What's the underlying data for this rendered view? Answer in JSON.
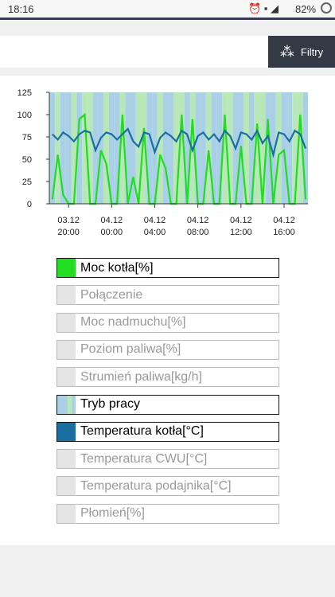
{
  "status_bar": {
    "time": "18:16",
    "battery": "82%"
  },
  "header": {
    "button": "Filtry"
  },
  "chart_data": {
    "type": "line",
    "x": [
      "03.12 18:30",
      "03.12 19:00",
      "03.12 19:30",
      "03.12 20:00",
      "03.12 20:30",
      "03.12 21:00",
      "03.12 21:30",
      "03.12 22:00",
      "03.12 22:30",
      "03.12 23:00",
      "03.12 23:30",
      "04.12 00:00",
      "04.12 00:30",
      "04.12 01:00",
      "04.12 01:30",
      "04.12 02:00",
      "04.12 02:30",
      "04.12 03:00",
      "04.12 03:30",
      "04.12 04:00",
      "04.12 04:30",
      "04.12 05:00",
      "04.12 05:30",
      "04.12 06:00",
      "04.12 06:30",
      "04.12 07:00",
      "04.12 07:30",
      "04.12 08:00",
      "04.12 08:30",
      "04.12 09:00",
      "04.12 09:30",
      "04.12 10:00",
      "04.12 10:30",
      "04.12 11:00",
      "04.12 11:30",
      "04.12 12:00",
      "04.12 12:30",
      "04.12 13:00",
      "04.12 13:30",
      "04.12 14:00",
      "04.12 14:30",
      "04.12 15:00",
      "04.12 15:30",
      "04.12 16:00",
      "04.12 16:30",
      "04.12 17:00",
      "04.12 17:30",
      "04.12 18:00"
    ],
    "xlim": [
      "03.12 18:13",
      "04.12 18:13"
    ],
    "xticks": [
      {
        "value": "03.12 20:00",
        "label": [
          "03.12",
          "20:00"
        ]
      },
      {
        "value": "04.12 00:00",
        "label": [
          "04.12",
          "00:00"
        ]
      },
      {
        "value": "04.12 04:00",
        "label": [
          "04.12",
          "04:00"
        ]
      },
      {
        "value": "04.12 08:00",
        "label": [
          "04.12",
          "08:00"
        ]
      },
      {
        "value": "04.12 12:00",
        "label": [
          "04.12",
          "12:00"
        ]
      },
      {
        "value": "04.12 16:00",
        "label": [
          "04.12",
          "16:00"
        ]
      }
    ],
    "ylim": [
      0,
      125
    ],
    "yticks": [
      0,
      25,
      50,
      75,
      100,
      125
    ],
    "series": [
      {
        "name": "Moc kotła[%]",
        "color": "#22dd22",
        "visible": true,
        "values": [
          5,
          55,
          10,
          0,
          0,
          95,
          100,
          0,
          0,
          60,
          45,
          0,
          0,
          100,
          0,
          30,
          0,
          85,
          0,
          0,
          55,
          40,
          0,
          0,
          100,
          0,
          95,
          0,
          0,
          60,
          0,
          0,
          100,
          0,
          0,
          65,
          0,
          0,
          90,
          0,
          95,
          0,
          55,
          60,
          0,
          0,
          100,
          5
        ]
      },
      {
        "name": "Połączenie",
        "visible": false
      },
      {
        "name": "Moc nadmuchu[%]",
        "visible": false
      },
      {
        "name": "Poziom paliwa[%]",
        "visible": false
      },
      {
        "name": "Strumień paliwa[kg/h]",
        "visible": false
      },
      {
        "name": "Tryb pracy",
        "colors": [
          "#a9d0e6",
          "#b8e8b8"
        ],
        "visible": true,
        "mode": "band",
        "values": [
          1,
          2,
          1,
          1,
          2,
          1,
          2,
          2,
          1,
          1,
          2,
          1,
          1,
          2,
          1,
          1,
          2,
          2,
          1,
          1,
          2,
          1,
          1,
          2,
          2,
          1,
          2,
          1,
          1,
          2,
          1,
          1,
          2,
          2,
          1,
          1,
          2,
          1,
          2,
          2,
          1,
          1,
          2,
          1,
          1,
          2,
          2,
          1
        ]
      },
      {
        "name": "Temperatura kotła[°C]",
        "color": "#1a6fa0",
        "visible": true,
        "values": [
          78,
          72,
          80,
          76,
          70,
          78,
          82,
          80,
          60,
          74,
          80,
          78,
          72,
          78,
          84,
          70,
          64,
          80,
          78,
          58,
          74,
          80,
          76,
          70,
          82,
          78,
          60,
          76,
          80,
          72,
          78,
          70,
          82,
          76,
          62,
          80,
          78,
          72,
          82,
          68,
          76,
          55,
          80,
          78,
          70,
          82,
          78,
          62
        ]
      },
      {
        "name": "Temperatura CWU[°C]",
        "visible": false
      },
      {
        "name": "Temperatura podajnika[°C]",
        "visible": false
      },
      {
        "name": "Płomień[%]",
        "visible": false
      }
    ]
  }
}
